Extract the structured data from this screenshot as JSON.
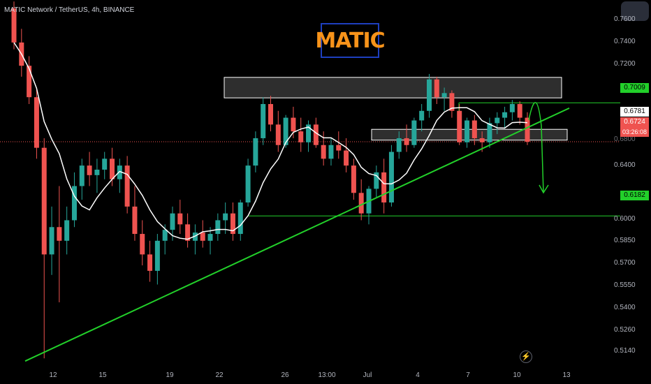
{
  "header": {
    "symbol": "MATIC Network / TetherUS, 4h, BINANCE"
  },
  "badge": {
    "text": "MATIC"
  },
  "colors": {
    "up": "#26a69a",
    "down": "#ef5350",
    "ma": "#ffffff",
    "trend": "#22d02a",
    "bg": "#000000"
  },
  "icons": {
    "bolt": "lightning-icon"
  },
  "y_axis": {
    "ticks": [
      "0.7600",
      "0.7400",
      "0.7200",
      "0.6400",
      "0.6000",
      "0.5850",
      "0.5700",
      "0.5550",
      "0.5400",
      "0.5260",
      "0.5140"
    ],
    "partial_ticks": [
      "0.6800"
    ]
  },
  "x_axis": {
    "ticks": [
      "12",
      "15",
      "19",
      "22",
      "26",
      "13:00",
      "Jul",
      "4",
      "7",
      "10",
      "13"
    ]
  },
  "price_labels": {
    "resistance": "0.7009",
    "ma_value": "0.6781",
    "last_price": "0.6724",
    "countdown": "03:26:08",
    "target": "0.6182"
  },
  "chart_data": {
    "type": "candlestick",
    "title": "MATIC",
    "pair": "MATIC Network / TetherUS",
    "timeframe": "4h",
    "exchange": "BINANCE",
    "x_ticks": [
      "12",
      "15",
      "19",
      "22",
      "26",
      "13:00",
      "Jul",
      "4",
      "7",
      "10",
      "13"
    ],
    "y_ticks": [
      0.76,
      0.74,
      0.72,
      0.68,
      0.64,
      0.6,
      0.585,
      0.57,
      0.555,
      0.54,
      0.526,
      0.514
    ],
    "ylim": [
      0.508,
      0.772
    ],
    "last_price": 0.6724,
    "moving_average_last": 0.6781,
    "levels": {
      "resistance_line": 0.7009,
      "target_line": 0.6182,
      "resistance_zone": [
        0.7045,
        0.7195
      ],
      "support_zone": [
        0.6736,
        0.6815
      ]
    },
    "trendline": {
      "from": [
        0,
        0.512
      ],
      "to": [
        815,
        0.697
      ]
    },
    "annotations": [
      "down-arrow toward 0.6182"
    ],
    "grid": false,
    "candles_approx_ohlc": [
      [
        0.77,
        0.775,
        0.74,
        0.745
      ],
      [
        0.745,
        0.755,
        0.72,
        0.728
      ],
      [
        0.728,
        0.735,
        0.7,
        0.705
      ],
      [
        0.705,
        0.712,
        0.66,
        0.668
      ],
      [
        0.668,
        0.675,
        0.514,
        0.59
      ],
      [
        0.59,
        0.625,
        0.575,
        0.61
      ],
      [
        0.61,
        0.64,
        0.555,
        0.6
      ],
      [
        0.6,
        0.625,
        0.59,
        0.615
      ],
      [
        0.615,
        0.65,
        0.61,
        0.64
      ],
      [
        0.64,
        0.66,
        0.63,
        0.655
      ],
      [
        0.655,
        0.665,
        0.64,
        0.648
      ],
      [
        0.648,
        0.66,
        0.635,
        0.652
      ],
      [
        0.652,
        0.665,
        0.645,
        0.66
      ],
      [
        0.66,
        0.668,
        0.64,
        0.645
      ],
      [
        0.645,
        0.66,
        0.635,
        0.655
      ],
      [
        0.655,
        0.662,
        0.62,
        0.625
      ],
      [
        0.625,
        0.64,
        0.6,
        0.605
      ],
      [
        0.605,
        0.615,
        0.582,
        0.59
      ],
      [
        0.59,
        0.6,
        0.57,
        0.578
      ],
      [
        0.578,
        0.605,
        0.568,
        0.6
      ],
      [
        0.6,
        0.612,
        0.59,
        0.608
      ],
      [
        0.608,
        0.625,
        0.6,
        0.62
      ],
      [
        0.62,
        0.63,
        0.605,
        0.612
      ],
      [
        0.612,
        0.62,
        0.595,
        0.6
      ],
      [
        0.6,
        0.612,
        0.59,
        0.606
      ],
      [
        0.606,
        0.615,
        0.595,
        0.6
      ],
      [
        0.6,
        0.61,
        0.59,
        0.605
      ],
      [
        0.605,
        0.62,
        0.6,
        0.615
      ],
      [
        0.615,
        0.628,
        0.605,
        0.62
      ],
      [
        0.62,
        0.628,
        0.6,
        0.605
      ],
      [
        0.605,
        0.63,
        0.6,
        0.628
      ],
      [
        0.628,
        0.66,
        0.625,
        0.655
      ],
      [
        0.655,
        0.68,
        0.65,
        0.675
      ],
      [
        0.675,
        0.705,
        0.67,
        0.7
      ],
      [
        0.7,
        0.706,
        0.68,
        0.685
      ],
      [
        0.685,
        0.695,
        0.665,
        0.67
      ],
      [
        0.67,
        0.692,
        0.668,
        0.69
      ],
      [
        0.69,
        0.698,
        0.675,
        0.68
      ],
      [
        0.68,
        0.69,
        0.665,
        0.672
      ],
      [
        0.672,
        0.688,
        0.665,
        0.685
      ],
      [
        0.685,
        0.69,
        0.668,
        0.67
      ],
      [
        0.67,
        0.68,
        0.655,
        0.66
      ],
      [
        0.66,
        0.675,
        0.655,
        0.67
      ],
      [
        0.67,
        0.68,
        0.66,
        0.666
      ],
      [
        0.666,
        0.675,
        0.65,
        0.655
      ],
      [
        0.655,
        0.66,
        0.63,
        0.635
      ],
      [
        0.635,
        0.645,
        0.615,
        0.62
      ],
      [
        0.62,
        0.64,
        0.612,
        0.638
      ],
      [
        0.638,
        0.655,
        0.632,
        0.65
      ],
      [
        0.65,
        0.66,
        0.62,
        0.628
      ],
      [
        0.628,
        0.67,
        0.625,
        0.665
      ],
      [
        0.665,
        0.68,
        0.66,
        0.675
      ],
      [
        0.675,
        0.685,
        0.665,
        0.67
      ],
      [
        0.67,
        0.69,
        0.668,
        0.688
      ],
      [
        0.688,
        0.7,
        0.68,
        0.695
      ],
      [
        0.695,
        0.722,
        0.69,
        0.718
      ],
      [
        0.718,
        0.72,
        0.7,
        0.705
      ],
      [
        0.705,
        0.712,
        0.695,
        0.708
      ],
      [
        0.708,
        0.71,
        0.69,
        0.695
      ],
      [
        0.695,
        0.7,
        0.67,
        0.672
      ],
      [
        0.672,
        0.69,
        0.668,
        0.688
      ],
      [
        0.688,
        0.692,
        0.67,
        0.675
      ],
      [
        0.675,
        0.68,
        0.665,
        0.672
      ],
      [
        0.672,
        0.69,
        0.668,
        0.686
      ],
      [
        0.686,
        0.694,
        0.678,
        0.69
      ],
      [
        0.69,
        0.698,
        0.682,
        0.694
      ],
      [
        0.694,
        0.703,
        0.688,
        0.7
      ],
      [
        0.7,
        0.702,
        0.685,
        0.69
      ],
      [
        0.69,
        0.694,
        0.67,
        0.6724
      ]
    ]
  }
}
